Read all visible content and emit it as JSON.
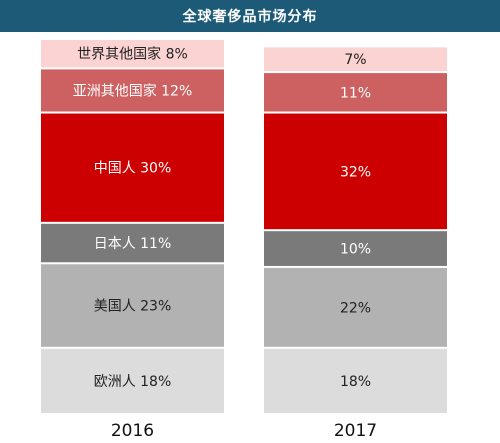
{
  "header": {
    "title": "全球奢侈品市场分布"
  },
  "chart_data": {
    "type": "bar",
    "stacked": true,
    "categories": [
      "2016",
      "2017"
    ],
    "series": [
      {
        "name": "欧洲人",
        "values": [
          18,
          18
        ],
        "color": "#dcdcdc",
        "text_color": "#222222"
      },
      {
        "name": "美国人",
        "values": [
          23,
          22
        ],
        "color": "#b2b2b2",
        "text_color": "#222222"
      },
      {
        "name": "日本人",
        "values": [
          11,
          10
        ],
        "color": "#7a7a7a",
        "text_color": "#ffffff"
      },
      {
        "name": "中国人",
        "values": [
          30,
          32
        ],
        "color": "#cc0000",
        "text_color": "#ffffff"
      },
      {
        "name": "亚洲其他国家",
        "values": [
          12,
          11
        ],
        "color": "#cd6060",
        "text_color": "#ffffff"
      },
      {
        "name": "世界其他国家",
        "values": [
          8,
          7
        ],
        "color": "#fbd3d3",
        "text_color": "#222222"
      }
    ],
    "labels": {
      "2016": [
        "欧洲人 18%",
        "美国人 23%",
        "日本人 11%",
        "中国人 30%",
        "亚洲其他国家 12%",
        "世界其他国家 8%"
      ],
      "2017": [
        "18%",
        "22%",
        "10%",
        "32%",
        "11%",
        "7%"
      ]
    },
    "ylim": [
      0,
      102
    ],
    "grid": false,
    "legend": "none"
  }
}
